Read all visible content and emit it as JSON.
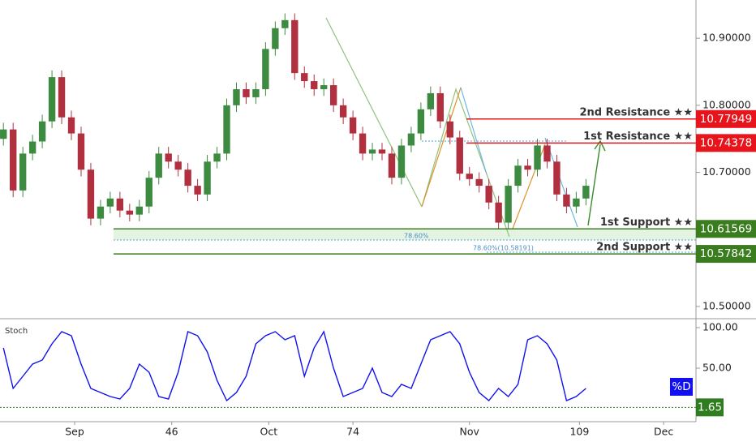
{
  "chart_data": {
    "type": "candlestick",
    "x": [
      20,
      21.5,
      23,
      24.5,
      26,
      27.5,
      29,
      30.5,
      32,
      33.5,
      35,
      36.5,
      38,
      39.5,
      41,
      42.5,
      44,
      45.5,
      47,
      48.5,
      50,
      51.5,
      53,
      54.5,
      56,
      57.5,
      59,
      60.5,
      62,
      63.5,
      65,
      66.5,
      68,
      69.5,
      71,
      72.5,
      74,
      75.5,
      77,
      78.5,
      80,
      81.5,
      83,
      84.5,
      86,
      87.5,
      89,
      90.5,
      92,
      93.5,
      95,
      96.5,
      98,
      99.5,
      101,
      102.5,
      104,
      105.5,
      107,
      108.5,
      110
    ],
    "open": [
      10.75,
      10.764,
      10.673,
      10.728,
      10.746,
      10.776,
      10.842,
      10.782,
      10.758,
      10.704,
      10.631,
      10.649,
      10.661,
      10.643,
      10.637,
      10.649,
      10.692,
      10.728,
      10.716,
      10.704,
      10.68,
      10.667,
      10.716,
      10.728,
      10.8,
      10.824,
      10.812,
      10.824,
      10.884,
      10.915,
      10.927,
      10.848,
      10.836,
      10.824,
      10.83,
      10.8,
      10.782,
      10.758,
      10.728,
      10.734,
      10.728,
      10.692,
      10.74,
      10.758,
      10.794,
      10.818,
      10.776,
      10.752,
      10.698,
      10.69,
      10.68,
      10.655,
      10.625,
      10.68,
      10.71,
      10.704,
      10.74,
      10.716,
      10.667,
      10.649,
      10.661
    ],
    "high": [
      10.774,
      10.774,
      10.738,
      10.756,
      10.786,
      10.852,
      10.852,
      10.792,
      10.768,
      10.714,
      10.659,
      10.671,
      10.671,
      10.653,
      10.659,
      10.702,
      10.738,
      10.738,
      10.726,
      10.714,
      10.69,
      10.726,
      10.738,
      10.81,
      10.834,
      10.834,
      10.834,
      10.894,
      10.925,
      10.937,
      10.937,
      10.858,
      10.846,
      10.84,
      10.84,
      10.81,
      10.792,
      10.768,
      10.744,
      10.744,
      10.738,
      10.75,
      10.768,
      10.804,
      10.828,
      10.828,
      10.786,
      10.762,
      10.708,
      10.7,
      10.69,
      10.665,
      10.69,
      10.72,
      10.72,
      10.75,
      10.75,
      10.726,
      10.677,
      10.671,
      10.69
    ],
    "low": [
      10.74,
      10.663,
      10.663,
      10.718,
      10.736,
      10.766,
      10.772,
      10.748,
      10.694,
      10.621,
      10.621,
      10.639,
      10.633,
      10.627,
      10.627,
      10.639,
      10.682,
      10.706,
      10.694,
      10.67,
      10.657,
      10.657,
      10.706,
      10.718,
      10.79,
      10.802,
      10.802,
      10.814,
      10.874,
      10.905,
      10.838,
      10.826,
      10.814,
      10.814,
      10.79,
      10.772,
      10.748,
      10.718,
      10.718,
      10.718,
      10.682,
      10.682,
      10.73,
      10.748,
      10.784,
      10.766,
      10.742,
      10.688,
      10.68,
      10.67,
      10.645,
      10.615,
      10.615,
      10.67,
      10.694,
      10.694,
      10.706,
      10.657,
      10.639,
      10.639,
      10.651
    ],
    "close": [
      10.764,
      10.673,
      10.728,
      10.746,
      10.776,
      10.842,
      10.782,
      10.758,
      10.704,
      10.631,
      10.649,
      10.661,
      10.643,
      10.637,
      10.649,
      10.692,
      10.728,
      10.716,
      10.704,
      10.68,
      10.667,
      10.716,
      10.728,
      10.8,
      10.824,
      10.812,
      10.824,
      10.884,
      10.915,
      10.927,
      10.848,
      10.836,
      10.824,
      10.83,
      10.8,
      10.782,
      10.758,
      10.728,
      10.734,
      10.728,
      10.692,
      10.74,
      10.758,
      10.794,
      10.818,
      10.776,
      10.752,
      10.698,
      10.69,
      10.68,
      10.655,
      10.625,
      10.68,
      10.71,
      10.704,
      10.74,
      10.716,
      10.667,
      10.649,
      10.661,
      10.68
    ],
    "up_color": "#3d8b40",
    "down_color": "#b03040",
    "xlim": [
      19.47,
      127
    ],
    "xticks": [
      {
        "value": 31,
        "label": "Sep"
      },
      46,
      {
        "value": 61,
        "label": "Oct"
      },
      74,
      {
        "value": 92,
        "label": "Nov"
      },
      109,
      {
        "value": 122,
        "label": "Dec"
      }
    ],
    "ylim": [
      10.483,
      10.957
    ],
    "yticks": [
      {
        "value": 10.9,
        "label": "10.90000"
      },
      {
        "value": 10.8,
        "label": "10.80000"
      },
      {
        "value": 10.7,
        "label": "10.70000"
      },
      {
        "value": 10.5,
        "label": "10.50000"
      }
    ],
    "levels": [
      {
        "name": "2nd Resistance ★★",
        "value": 10.77949,
        "color": "#e8141c"
      },
      {
        "name": "1st Resistance ★★",
        "value": 10.74378,
        "color": "#e8141c"
      },
      {
        "name": "1st Support ★★",
        "value": 10.61569,
        "color": "#3a7d1e"
      },
      {
        "name": "2nd Support ★★",
        "value": 10.57842,
        "color": "#3a7d1e"
      }
    ],
    "annotations": [
      "78.60%",
      "78.60%(10.58191)"
    ],
    "stoch": {
      "type": "line",
      "title": "Stoch",
      "name": "%D",
      "color": "#1010f0",
      "values": [
        75,
        25,
        40,
        55,
        60,
        80,
        95,
        90,
        55,
        25,
        20,
        15,
        12,
        25,
        55,
        45,
        15,
        12,
        45,
        95,
        90,
        70,
        35,
        10,
        20,
        40,
        80,
        90,
        95,
        85,
        90,
        40,
        75,
        95,
        50,
        15,
        20,
        25,
        50,
        20,
        15,
        30,
        25,
        55,
        85,
        90,
        95,
        80,
        45,
        20,
        10,
        25,
        15,
        30,
        85,
        90,
        80,
        60,
        10,
        15,
        25
      ],
      "ylim": [
        -16,
        109
      ],
      "yticks": [
        {
          "value": 100,
          "label": "100.00"
        },
        {
          "value": 50,
          "label": "50.00"
        }
      ],
      "level": 1.65,
      "level_color": "#2e7d1e"
    }
  }
}
